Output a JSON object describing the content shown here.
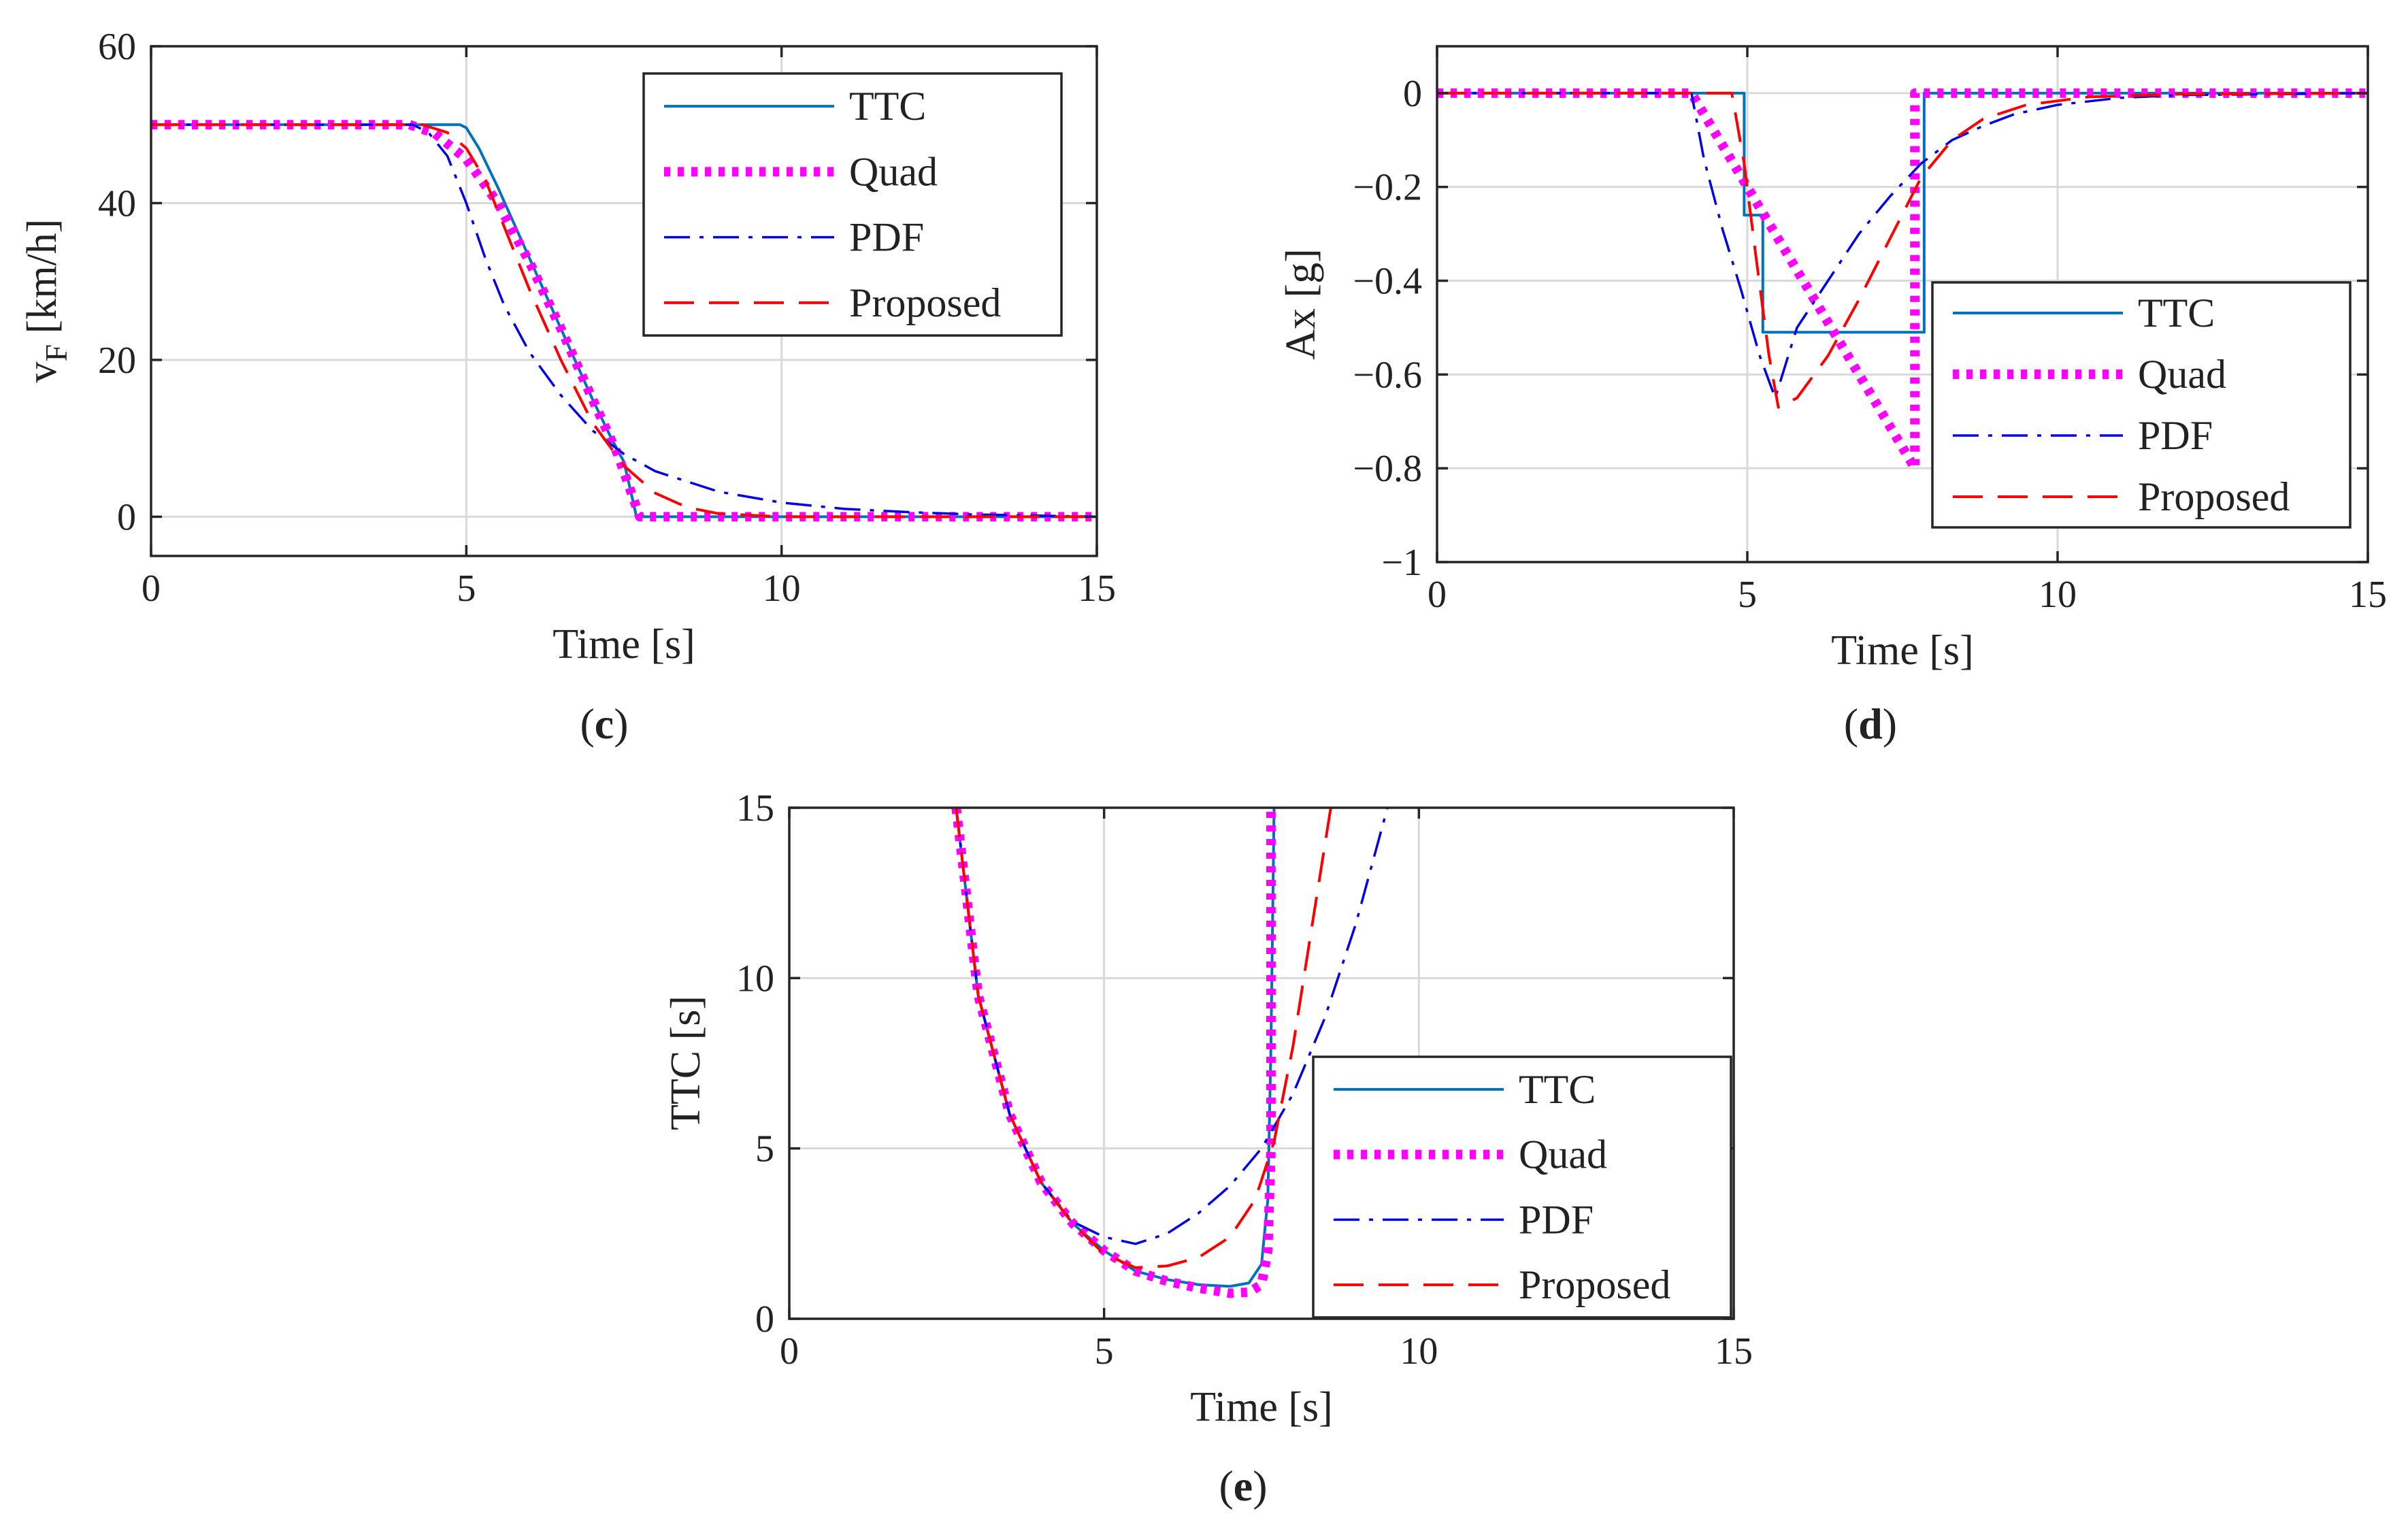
{
  "panels": [
    {
      "caption_letter": "c"
    },
    {
      "caption_letter": "d"
    },
    {
      "caption_letter": "e"
    }
  ],
  "series_styles": [
    {
      "name": "TTC",
      "color": "#0072BD",
      "dash": "solid",
      "width": 4
    },
    {
      "name": "Quad",
      "color": "#FF00FF",
      "dash": "dotted",
      "width": 14
    },
    {
      "name": "PDF",
      "color": "#0000E6",
      "dash": "dashdot",
      "width": 3.5
    },
    {
      "name": "Proposed",
      "color": "#FF0000",
      "dash": "dashed",
      "width": 4
    }
  ],
  "chart_data": [
    {
      "type": "line",
      "panel": "c",
      "xlabel": "Time [s]",
      "ylabel": "v",
      "ylabel_sub": "F",
      "ylabel_unit": " [km/h]",
      "xlim": [
        0,
        15
      ],
      "ylim": [
        -5,
        60
      ],
      "xticks": [
        0,
        5,
        10,
        15
      ],
      "yticks": [
        0,
        20,
        40,
        60
      ],
      "grid": true,
      "legend_position": "top-right",
      "series": [
        {
          "name": "TTC",
          "x": [
            0,
            4.7,
            4.9,
            5.0,
            5.2,
            5.5,
            6.0,
            6.5,
            7.0,
            7.3,
            7.5,
            7.6,
            7.7,
            15
          ],
          "y": [
            50,
            50,
            50,
            49.6,
            47,
            42,
            33,
            24,
            15,
            10,
            7,
            3.5,
            0,
            0
          ]
        },
        {
          "name": "Quad",
          "x": [
            0,
            4.1,
            4.5,
            5.0,
            5.5,
            6.0,
            6.5,
            7.0,
            7.4,
            7.75,
            15
          ],
          "y": [
            50,
            50,
            48.9,
            45.6,
            40,
            32.5,
            24,
            15,
            8,
            0,
            0
          ]
        },
        {
          "name": "PDF",
          "x": [
            0,
            4.15,
            4.4,
            4.7,
            5.0,
            5.3,
            5.6,
            6.0,
            6.5,
            7.0,
            7.5,
            8.0,
            9.0,
            10.0,
            11.0,
            12.0,
            13.0,
            15.0
          ],
          "y": [
            50,
            50,
            49,
            46,
            40,
            33,
            27,
            21,
            15.5,
            11,
            8,
            5.8,
            3.2,
            1.8,
            1.0,
            0.6,
            0.3,
            0
          ]
        },
        {
          "name": "Proposed",
          "x": [
            0,
            4.3,
            4.7,
            5.0,
            5.3,
            5.6,
            6.0,
            6.5,
            7.0,
            7.5,
            8.0,
            8.5,
            9.0,
            10.0,
            15
          ],
          "y": [
            50,
            50,
            49,
            47,
            43,
            37,
            29,
            20,
            12,
            6.5,
            3,
            1.2,
            0.4,
            0,
            0
          ]
        }
      ]
    },
    {
      "type": "line",
      "panel": "d",
      "xlabel": "Time [s]",
      "ylabel": "Ax [g]",
      "xlim": [
        0,
        15
      ],
      "ylim": [
        -1,
        0.1
      ],
      "xticks": [
        0,
        5,
        10,
        15
      ],
      "yticks": [
        0,
        -0.2,
        -0.4,
        -0.6,
        -0.8,
        -1
      ],
      "ytick_labels": [
        "0",
        "−0.2",
        "−0.4",
        "−0.6",
        "−0.8",
        "−1"
      ],
      "grid": true,
      "legend_position": "bottom-right",
      "series": [
        {
          "name": "TTC",
          "x": [
            0,
            4.95,
            4.95,
            5.25,
            5.25,
            7.85,
            7.85,
            15
          ],
          "y": [
            0,
            0,
            -0.26,
            -0.26,
            -0.51,
            -0.51,
            0,
            0
          ]
        },
        {
          "name": "Quad",
          "x": [
            0,
            4.1,
            7.7,
            7.7,
            15
          ],
          "y": [
            0,
            0,
            -0.8,
            0,
            0
          ]
        },
        {
          "name": "PDF",
          "x": [
            0,
            4.1,
            4.3,
            4.6,
            4.9,
            5.2,
            5.45,
            5.8,
            6.3,
            6.8,
            7.3,
            7.8,
            8.3,
            8.8,
            9.3,
            10,
            11,
            12,
            15
          ],
          "y": [
            0,
            0,
            -0.14,
            -0.29,
            -0.42,
            -0.56,
            -0.65,
            -0.5,
            -0.4,
            -0.3,
            -0.22,
            -0.15,
            -0.1,
            -0.07,
            -0.045,
            -0.025,
            -0.01,
            -0.004,
            0
          ]
        },
        {
          "name": "Proposed",
          "x": [
            0,
            4.75,
            4.95,
            5.15,
            5.35,
            5.5,
            5.8,
            6.3,
            6.8,
            7.3,
            7.8,
            8.3,
            8.8,
            9.5,
            10.5,
            12,
            15
          ],
          "y": [
            0,
            0,
            -0.15,
            -0.36,
            -0.56,
            -0.67,
            -0.65,
            -0.56,
            -0.44,
            -0.31,
            -0.18,
            -0.1,
            -0.055,
            -0.025,
            -0.008,
            -0.002,
            0
          ]
        }
      ]
    },
    {
      "type": "line",
      "panel": "e",
      "xlabel": "Time [s]",
      "ylabel": "TTC [s]",
      "xlim": [
        0,
        15
      ],
      "ylim": [
        0,
        15
      ],
      "xticks": [
        0,
        5,
        10,
        15
      ],
      "yticks": [
        0,
        5,
        10,
        15
      ],
      "grid": true,
      "legend_position": "bottom-right",
      "series": [
        {
          "name": "TTC",
          "x": [
            2.65,
            3.0,
            3.5,
            4.0,
            4.5,
            5.0,
            5.5,
            6.0,
            6.5,
            7.0,
            7.3,
            7.5,
            7.6,
            7.65,
            7.7
          ],
          "y": [
            15,
            9.5,
            6.0,
            4.0,
            2.8,
            2.0,
            1.4,
            1.15,
            1.0,
            0.95,
            1.05,
            1.6,
            3.5,
            8,
            15
          ]
        },
        {
          "name": "Quad",
          "x": [
            2.65,
            3.0,
            3.5,
            4.0,
            4.5,
            5.0,
            5.5,
            6.0,
            6.5,
            7.0,
            7.3,
            7.5,
            7.6,
            7.65,
            7.65
          ],
          "y": [
            15,
            9.5,
            6.0,
            4.0,
            2.8,
            2.0,
            1.4,
            1.1,
            0.9,
            0.75,
            0.78,
            1.0,
            2.0,
            5,
            15
          ]
        },
        {
          "name": "PDF",
          "x": [
            2.65,
            3.0,
            3.5,
            4.0,
            4.5,
            5.0,
            5.5,
            6.0,
            6.5,
            7.0,
            7.5,
            8.0,
            8.5,
            9.0,
            9.5
          ],
          "y": [
            15,
            9.5,
            6.0,
            4.0,
            2.85,
            2.4,
            2.2,
            2.5,
            3.1,
            3.9,
            5.0,
            6.6,
            8.8,
            11.6,
            15
          ]
        },
        {
          "name": "Proposed",
          "x": [
            2.65,
            3.0,
            3.5,
            4.0,
            4.5,
            5.0,
            5.5,
            6.0,
            6.5,
            7.0,
            7.4,
            7.7,
            8.0,
            8.3,
            8.6
          ],
          "y": [
            15,
            9.5,
            6.0,
            4.0,
            2.8,
            1.9,
            1.5,
            1.55,
            1.8,
            2.4,
            3.5,
            5.2,
            8.0,
            11.5,
            15
          ]
        }
      ]
    }
  ]
}
